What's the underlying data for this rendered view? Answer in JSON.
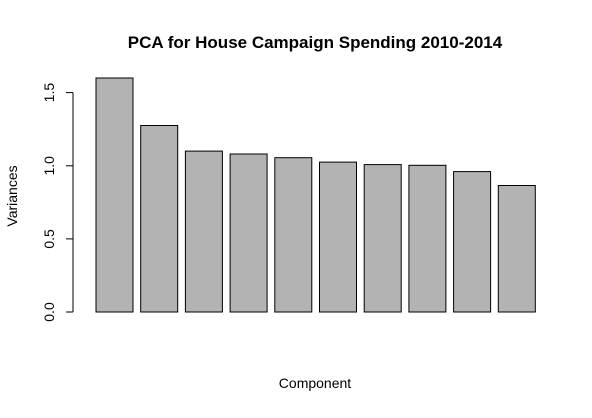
{
  "chart_data": {
    "type": "bar",
    "title": "PCA for House Campaign Spending 2010-2014",
    "xlabel": "Component",
    "ylabel": "Variances",
    "categories": [
      "",
      "",
      "",
      "",
      "",
      "",
      "",
      "",
      "",
      ""
    ],
    "values": [
      1.6,
      1.275,
      1.1,
      1.08,
      1.055,
      1.025,
      1.008,
      1.003,
      0.96,
      0.865
    ],
    "ylim": [
      0,
      1.6
    ],
    "yticks": [
      0,
      0.5,
      1.0,
      1.5
    ],
    "ytick_labels": [
      "0.0",
      "0.5",
      "1.0",
      "1.5"
    ],
    "bar_color": "#b3b3b3",
    "grid": false,
    "legend": "none"
  }
}
